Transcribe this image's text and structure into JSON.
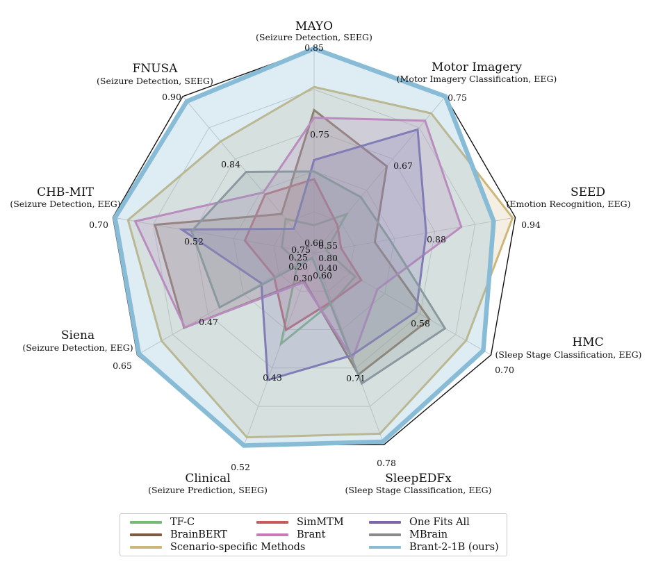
{
  "chart_data": {
    "type": "radar",
    "axes": [
      {
        "name": "MAYO",
        "sub": "(Seizure Detection, SEEG)",
        "min": 0.6,
        "max": 0.85,
        "inner_tick": 0.75
      },
      {
        "name": "Motor Imagery",
        "sub": "(Motor Imagery Classification, EEG)",
        "min": 0.55,
        "max": 0.75,
        "inner_tick": 0.67
      },
      {
        "name": "SEED",
        "sub": "(Emotion Recognition, EEG)",
        "min": 0.8,
        "max": 0.94,
        "inner_tick": 0.88
      },
      {
        "name": "HMC",
        "sub": "(Sleep Stage Classification, EEG)",
        "min": 0.4,
        "max": 0.7,
        "inner_tick": 0.58
      },
      {
        "name": "SleepEDFx",
        "sub": "(Sleep Stage Classification, EEG)",
        "min": 0.6,
        "max": 0.78,
        "inner_tick": 0.71
      },
      {
        "name": "Clinical",
        "sub": "(Seizure Prediction, SEEG)",
        "min": 0.3,
        "max": 0.52,
        "inner_tick": 0.43
      },
      {
        "name": "Siena",
        "sub": "(Seizure Detection, EEG)",
        "min": 0.2,
        "max": 0.65,
        "inner_tick": 0.47
      },
      {
        "name": "CHB-MIT",
        "sub": "(Seizure Detection, EEG)",
        "min": 0.25,
        "max": 0.7,
        "inner_tick": 0.52
      },
      {
        "name": "FNUSA",
        "sub": "(Seizure Detection, SEEG)",
        "min": 0.75,
        "max": 0.9,
        "inner_tick": 0.84
      }
    ],
    "range_labels": {
      "min": [
        "0.60",
        "0.55",
        "0.80",
        "0.40",
        "0.60",
        "0.30",
        "0.20",
        "0.25",
        "0.75"
      ],
      "max": [
        "0.85",
        "0.75",
        "0.94",
        "0.70",
        "0.78",
        "0.52",
        "0.65",
        "0.70",
        "0.90"
      ],
      "inner": [
        "0.75",
        "0.67",
        "0.88",
        "0.58",
        "0.71",
        "0.43",
        "0.47",
        "0.52",
        "0.84"
      ]
    },
    "series": [
      {
        "name": "TF-C",
        "color": "#76ba76",
        "fill": false,
        "values": [
          0.62,
          0.59,
          0.8,
          0.455,
          0.638,
          0.397,
          0.215,
          0.298,
          0.775
        ]
      },
      {
        "name": "BrainBERT",
        "color": "#7d5a40",
        "fill": true,
        "values": [
          0.77,
          0.655,
          0.836,
          0.589,
          0.71,
          0.32,
          0.523,
          0.6,
          0.78
        ]
      },
      {
        "name": "Scenario-specific Methods",
        "color": "#cdb679",
        "fill": true,
        "values": [
          0.8,
          0.727,
          0.938,
          0.655,
          0.769,
          0.511,
          0.584,
          0.664,
          0.854
        ]
      },
      {
        "name": "SimMTM",
        "color": "#c85a5a",
        "fill": true,
        "values": [
          0.68,
          0.575,
          0.811,
          0.466,
          0.637,
          0.38,
          0.28,
          0.386,
          0.8
        ]
      },
      {
        "name": "Brant",
        "color": "#cc7ab6",
        "fill": true,
        "values": [
          0.76,
          0.717,
          0.9,
          0.495,
          0.694,
          0.322,
          0.521,
          0.647,
          0.802
        ]
      },
      {
        "name": "One Fits All",
        "color": "#7e65aa",
        "fill": true,
        "values": [
          0.705,
          0.705,
          0.874,
          0.565,
          0.691,
          0.441,
          0.314,
          0.536,
          0.765
        ]
      },
      {
        "name": "MBrain",
        "color": "#8b8b8b",
        "fill": true,
        "values": [
          0.69,
          0.613,
          0.847,
          0.617,
          0.719,
          0.292,
          0.427,
          0.513,
          0.823
        ]
      },
      {
        "name": "Brant-2-1B (ours)",
        "color": "#87bbd6",
        "fill": true,
        "width": 6.5,
        "values": [
          0.85,
          0.75,
          0.924,
          0.686,
          0.777,
          0.521,
          0.645,
          0.695,
          0.895
        ]
      }
    ],
    "grid": true,
    "legend_position": "bottom"
  },
  "legend": [
    {
      "label": "TF-C",
      "color": "#76ba76"
    },
    {
      "label": "BrainBERT",
      "color": "#7d5a40"
    },
    {
      "label": "Scenario-specific Methods",
      "color": "#cdb679"
    },
    {
      "label": "SimMTM",
      "color": "#c85a5a"
    },
    {
      "label": "Brant",
      "color": "#cc7ab6"
    },
    {
      "label": "One Fits All",
      "color": "#7e65aa"
    },
    {
      "label": "MBrain",
      "color": "#8b8b8b"
    },
    {
      "label": "Brant-2-1B (ours)",
      "color": "#87bbd6"
    }
  ]
}
